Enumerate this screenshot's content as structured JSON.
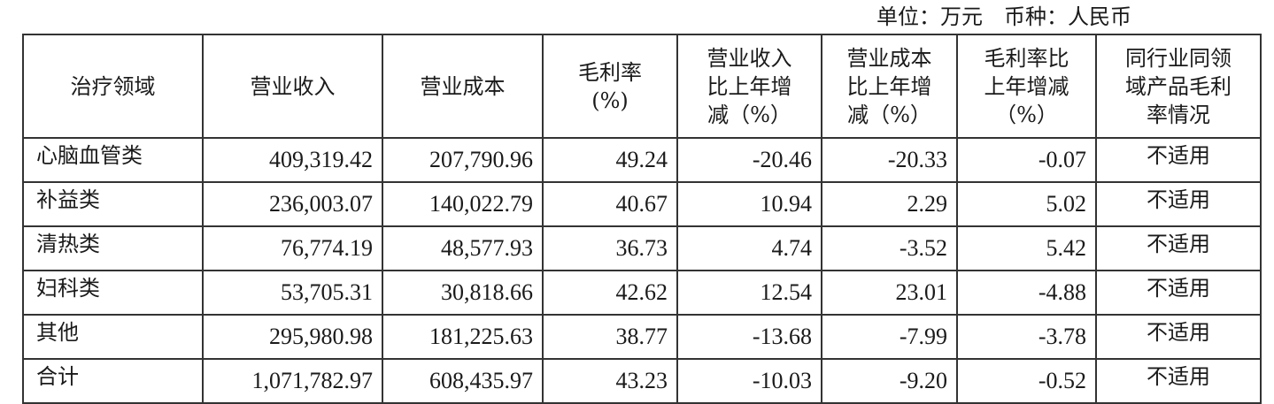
{
  "unit_note": "单位：万元　币种：人民币",
  "headers": [
    "治疗领域",
    "营业收入",
    "营业成本",
    "毛利率\n(%)",
    "营业收入\n比上年增\n减（%）",
    "营业成本\n比上年增\n减（%）",
    "毛利率比\n上年增减\n（%）",
    "同行业同领\n域产品毛利\n率情况"
  ],
  "rows": [
    [
      "心脑血管类",
      "409,319.42",
      "207,790.96",
      "49.24",
      "-20.46",
      "-20.33",
      "-0.07",
      "不适用"
    ],
    [
      "补益类",
      "236,003.07",
      "140,022.79",
      "40.67",
      "10.94",
      "2.29",
      "5.02",
      "不适用"
    ],
    [
      "清热类",
      "76,774.19",
      "48,577.93",
      "36.73",
      "4.74",
      "-3.52",
      "5.42",
      "不适用"
    ],
    [
      "妇科类",
      "53,705.31",
      "30,818.66",
      "42.62",
      "12.54",
      "23.01",
      "-4.88",
      "不适用"
    ],
    [
      "其他",
      "295,980.98",
      "181,225.63",
      "38.77",
      "-13.68",
      "-7.99",
      "-3.78",
      "不适用"
    ],
    [
      "合计",
      "1,071,782.97",
      "608,435.97",
      "43.23",
      "-10.03",
      "-9.20",
      "-0.52",
      "不适用"
    ]
  ]
}
